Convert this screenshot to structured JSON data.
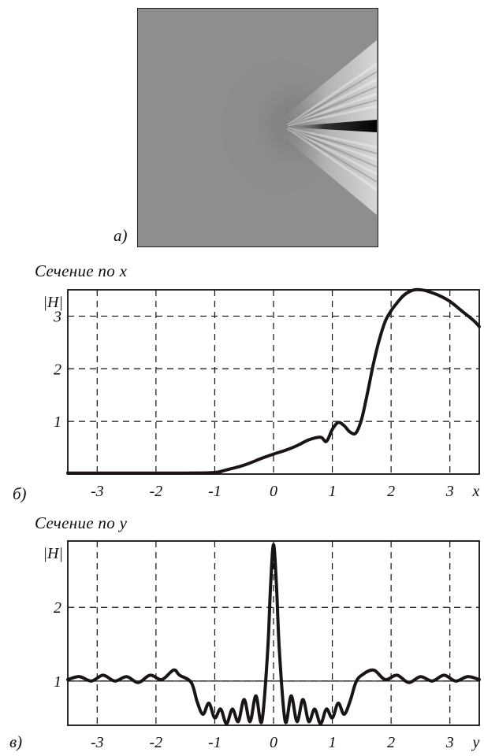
{
  "panels": {
    "a_label": "а)",
    "b_label": "б)",
    "c_label": "в)"
  },
  "chart_data": [
    {
      "type": "line",
      "title": "Сечение по x",
      "xlabel": "x",
      "ylabel": "|H|",
      "xlim": [
        -3.5,
        3.5
      ],
      "ylim": [
        0,
        3.5
      ],
      "x_ticks": [
        "-3",
        "-2",
        "-1",
        "0",
        "1",
        "2",
        "3"
      ],
      "y_ticks": [
        "1",
        "2",
        "3"
      ],
      "grid": true,
      "series": [
        {
          "x": [
            -3.5,
            -2.5,
            -1.5,
            -1.0,
            -0.8,
            -0.5,
            -0.2,
            0.0,
            0.2,
            0.4,
            0.6,
            0.8,
            0.9,
            1.0,
            1.1,
            1.2,
            1.3,
            1.4,
            1.5,
            1.6,
            1.7,
            1.8,
            1.9,
            2.0,
            2.1,
            2.2,
            2.3,
            2.4,
            2.5,
            2.6,
            2.8,
            3.0,
            3.2,
            3.4,
            3.5
          ],
          "y": [
            0.02,
            0.02,
            0.02,
            0.03,
            0.08,
            0.17,
            0.3,
            0.38,
            0.45,
            0.54,
            0.65,
            0.7,
            0.62,
            0.85,
            0.98,
            0.92,
            0.8,
            0.78,
            1.05,
            1.55,
            2.1,
            2.55,
            2.9,
            3.1,
            3.25,
            3.38,
            3.46,
            3.5,
            3.5,
            3.48,
            3.4,
            3.28,
            3.1,
            2.92,
            2.8
          ]
        }
      ]
    },
    {
      "type": "line",
      "title": "Сечение по y",
      "xlabel": "y",
      "ylabel": "|H|",
      "xlim": [
        -3.5,
        3.5
      ],
      "ylim": [
        0.4,
        2.9
      ],
      "x_ticks": [
        "-3",
        "-2",
        "-1",
        "0",
        "1",
        "2",
        "3"
      ],
      "y_ticks": [
        "1",
        "2"
      ],
      "grid": true,
      "series": [
        {
          "x": [
            -3.5,
            -3.3,
            -3.1,
            -2.9,
            -2.7,
            -2.5,
            -2.3,
            -2.1,
            -1.9,
            -1.7,
            -1.6,
            -1.4,
            -1.3,
            -1.2,
            -1.1,
            -1.0,
            -0.9,
            -0.8,
            -0.7,
            -0.6,
            -0.5,
            -0.4,
            -0.3,
            -0.2,
            -0.1,
            -0.05,
            0.0,
            0.05,
            0.1,
            0.2,
            0.3,
            0.4,
            0.5,
            0.6,
            0.7,
            0.8,
            0.9,
            1.0,
            1.1,
            1.2,
            1.3,
            1.4,
            1.5,
            1.7,
            1.9,
            2.1,
            2.3,
            2.5,
            2.7,
            2.9,
            3.1,
            3.3,
            3.5
          ],
          "y": [
            1.02,
            1.06,
            1.0,
            1.08,
            1.0,
            1.06,
            0.98,
            1.08,
            1.02,
            1.15,
            1.08,
            0.98,
            0.72,
            0.55,
            0.7,
            0.5,
            0.62,
            0.42,
            0.62,
            0.45,
            0.75,
            0.45,
            0.8,
            0.45,
            1.4,
            2.3,
            2.85,
            2.3,
            1.4,
            0.45,
            0.8,
            0.45,
            0.75,
            0.45,
            0.62,
            0.42,
            0.62,
            0.5,
            0.7,
            0.55,
            0.72,
            0.98,
            1.08,
            1.15,
            1.02,
            1.08,
            0.98,
            1.06,
            1.0,
            1.08,
            1.0,
            1.06,
            1.02
          ]
        }
      ]
    }
  ]
}
